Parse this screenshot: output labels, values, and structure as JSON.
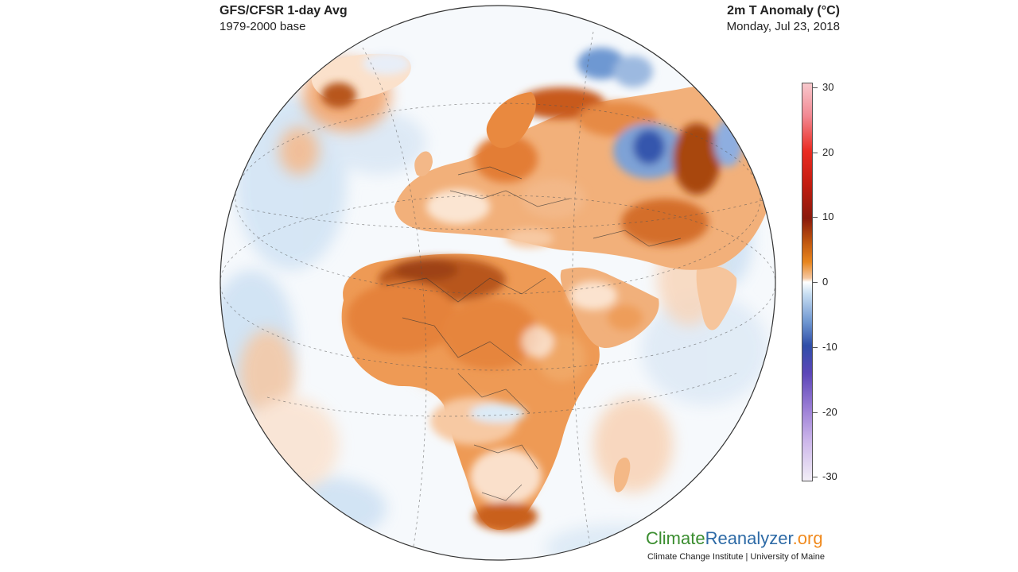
{
  "header": {
    "title_left": "GFS/CFSR 1-day Avg",
    "subtitle_left": "1979-2000 base",
    "title_right": "2m T Anomaly (°C)",
    "subtitle_right": "Monday, Jul 23, 2018"
  },
  "colorbar": {
    "labels": [
      "30",
      "20",
      "10",
      "0",
      "-10",
      "-20",
      "-30"
    ],
    "range": [
      -30,
      30
    ],
    "colors": {
      "max": "#f7c8cc",
      "warm": "#e8861f",
      "hot": "#8a1a0c",
      "zero": "#ffffff",
      "cold": "#2f4ea8",
      "min": "#f2eef6"
    }
  },
  "branding": {
    "name_part1": "Climate",
    "name_part2": "Reanalyzer",
    "name_part3": ".org",
    "tagline": "Climate Change Institute | University of Maine",
    "colors": {
      "part1": "#3a8d2f",
      "part2": "#2d6aa6",
      "part3": "#f08a1e"
    }
  },
  "map": {
    "projection": "orthographic",
    "region": "Europe-Africa",
    "palette": {
      "strong_warm": "#b24a0c",
      "warm": "#e98b3e",
      "mild_warm": "#f6c29a",
      "neutral": "#ffffff",
      "mild_cool": "#cfe2f3",
      "cool": "#7ea4d8",
      "strong_cool": "#2f4ea8"
    }
  }
}
